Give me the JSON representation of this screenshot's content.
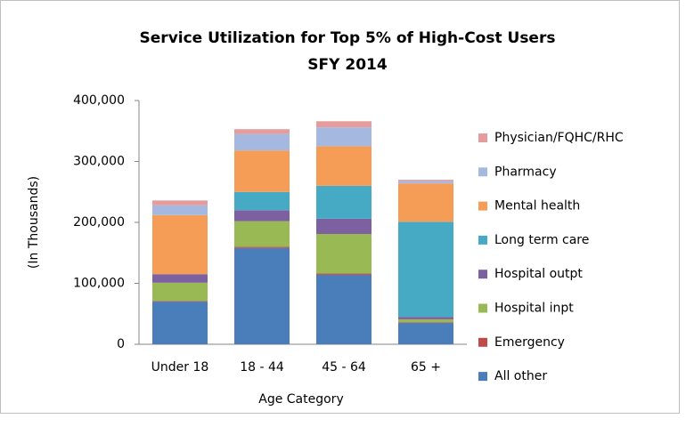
{
  "chart_data": {
    "type": "stacked_bar",
    "title": "Service Utilization for Top 5% of High-Cost Users",
    "subtitle": "SFY 2014",
    "y_label": "(In Thousands)",
    "x_label": "Age Category",
    "categories": [
      "Under 18",
      "18 - 44",
      "45 - 64",
      "65 +"
    ],
    "series": [
      {
        "name": "All other",
        "color": "#4a7ebb",
        "values": [
          70000,
          158000,
          114000,
          35000
        ]
      },
      {
        "name": "Emergency",
        "color": "#be4b48",
        "values": [
          1000,
          2000,
          2000,
          1000
        ]
      },
      {
        "name": "Hospital inpt",
        "color": "#98b954",
        "values": [
          30000,
          42000,
          65000,
          5000
        ]
      },
      {
        "name": "Hospital outpt",
        "color": "#7d60a0",
        "values": [
          14000,
          18000,
          25000,
          4000
        ]
      },
      {
        "name": "Long term care",
        "color": "#46aac5",
        "values": [
          0,
          30000,
          54000,
          156000
        ]
      },
      {
        "name": "Mental health",
        "color": "#f59d56",
        "values": [
          97000,
          68000,
          65000,
          63000
        ]
      },
      {
        "name": "Pharmacy",
        "color": "#a5b9e0",
        "values": [
          16000,
          27000,
          31000,
          4000
        ]
      },
      {
        "name": "Physician/FQHC/RHC",
        "color": "#e59c9c",
        "values": [
          8000,
          8000,
          10000,
          2000
        ]
      }
    ],
    "ylim": [
      0,
      400000
    ],
    "yticks": [
      0,
      {
        "value": 100000,
        "label": "100,000"
      },
      {
        "value": 200000,
        "label": "200,000"
      },
      {
        "value": 300000,
        "label": "300,000"
      },
      {
        "value": 400000,
        "label": "400,000"
      }
    ],
    "legend": "right"
  }
}
